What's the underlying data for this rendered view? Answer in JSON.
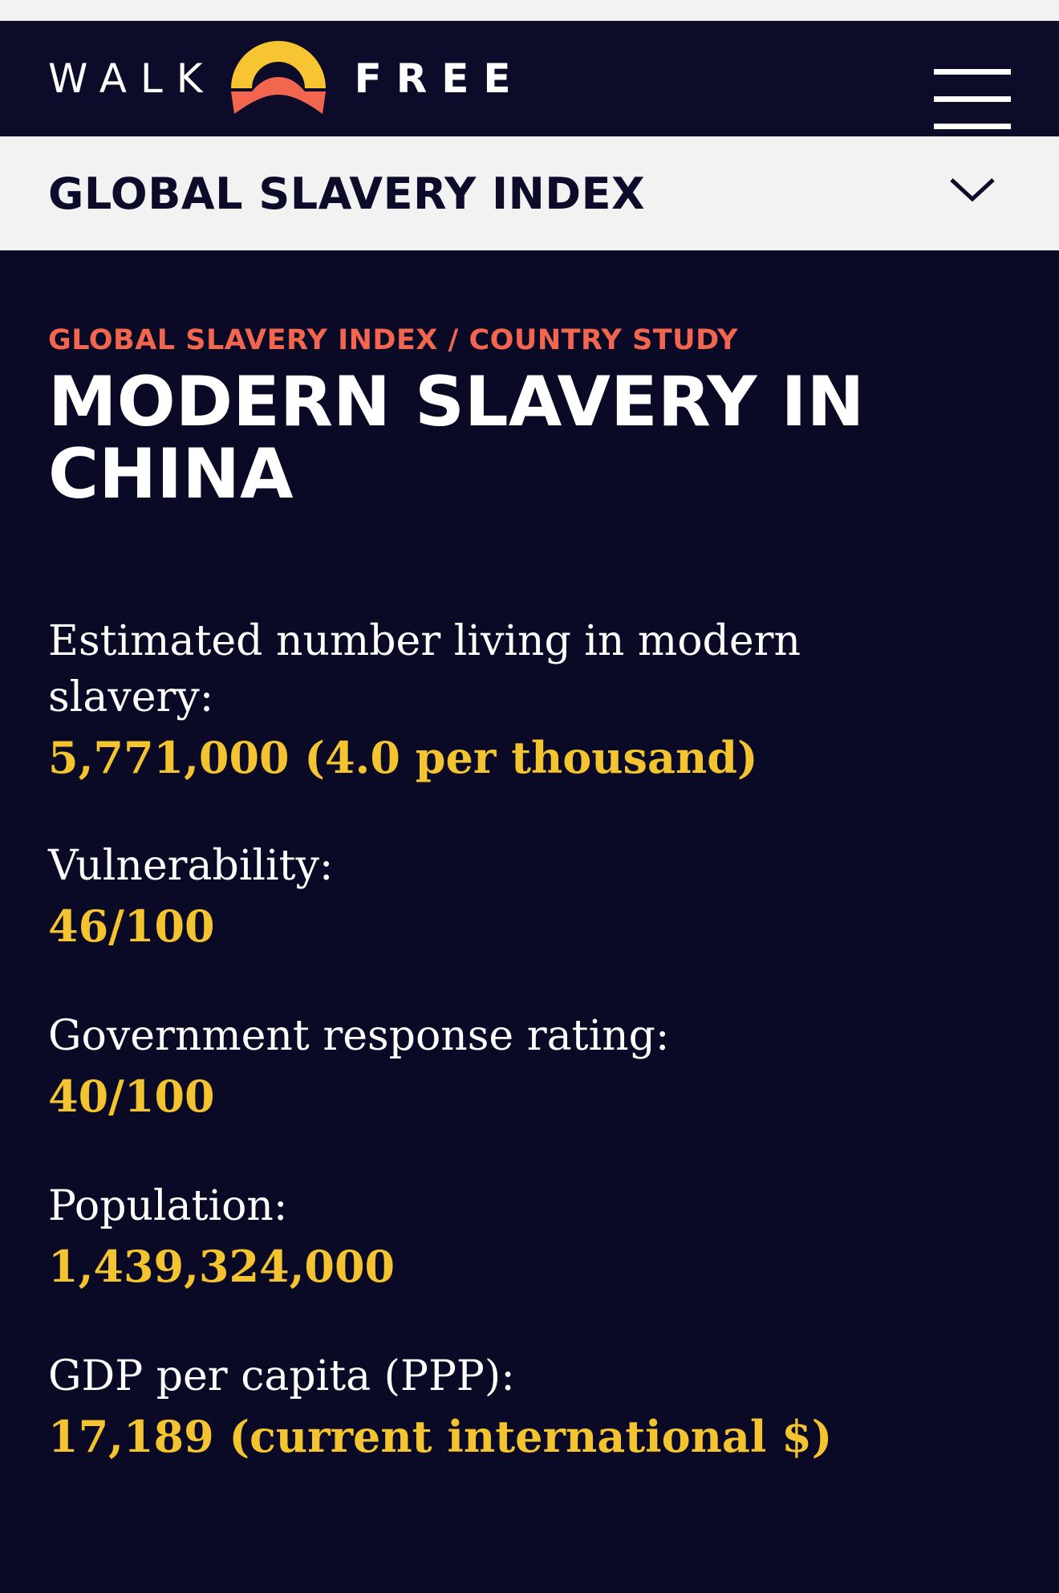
{
  "header": {
    "brand_left": "WALK",
    "brand_right": "FREE",
    "logo_icon": "walkfree-sunrise-icon",
    "menu_icon": "hamburger-menu-icon"
  },
  "subnav": {
    "title": "GLOBAL SLAVERY INDEX",
    "toggle_icon": "chevron-down-icon"
  },
  "main": {
    "breadcrumb": "GLOBAL SLAVERY INDEX / COUNTRY STUDY",
    "title": "MODERN SLAVERY IN CHINA",
    "stats": [
      {
        "label": "Estimated number living in modern slavery:",
        "value": "5,771,000 (4.0 per thousand)"
      },
      {
        "label": "Vulnerability:",
        "value": "46/100"
      },
      {
        "label": "Government response rating:",
        "value": "40/100"
      },
      {
        "label": "Population:",
        "value": "1,439,324,000"
      },
      {
        "label": "GDP per capita (PPP):",
        "value": "17,189 (current international $)"
      }
    ]
  },
  "colors": {
    "background": "#0a0a26",
    "header_bg": "#0c0c2a",
    "subnav_bg": "#f2f2f2",
    "breadcrumb": "#f2664f",
    "value": "#f4c430",
    "logo_yellow": "#f7c531",
    "logo_coral": "#f2664f"
  }
}
